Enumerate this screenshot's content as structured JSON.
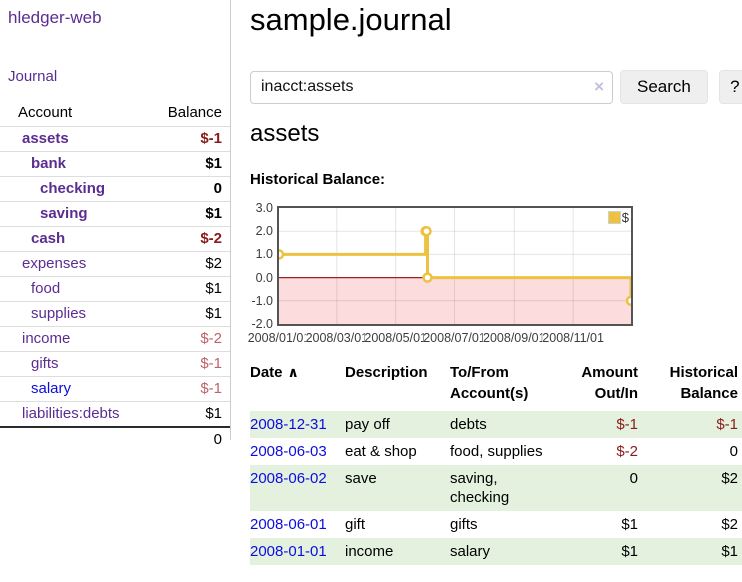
{
  "colors": {
    "link_purple": "#5b2d91",
    "link_blue": "#0d0de0",
    "negative": "#8b1a1a",
    "negative_dim": "#c0626a",
    "row_highlight": "#e3f1de",
    "chart_line": "#EDC240",
    "chart_negative_bg": "#fcdcdc",
    "chart_zero_line": "#9e2121",
    "chart_grid": "#e2e2e2",
    "chart_border": "#545454"
  },
  "sidebar": {
    "brand": "hledger-web",
    "nav": {
      "journal": "Journal"
    },
    "accounts": {
      "headers": {
        "account": "Account",
        "balance": "Balance"
      },
      "rows": [
        {
          "name": "assets",
          "balance": "$-1",
          "indent": 0,
          "bold": true,
          "negative": "strong",
          "link": "purple"
        },
        {
          "name": "bank",
          "balance": "$1",
          "indent": 1,
          "bold": true,
          "negative": null,
          "link": "purple"
        },
        {
          "name": "checking",
          "balance": "0",
          "indent": 2,
          "bold": true,
          "negative": null,
          "link": "purple"
        },
        {
          "name": "saving",
          "balance": "$1",
          "indent": 2,
          "bold": true,
          "negative": null,
          "link": "purple"
        },
        {
          "name": "cash",
          "balance": "$-2",
          "indent": 1,
          "bold": true,
          "negative": "strong",
          "link": "purple"
        },
        {
          "name": "expenses",
          "balance": "$2",
          "indent": 0,
          "bold": false,
          "negative": null,
          "link": "purple"
        },
        {
          "name": "food",
          "balance": "$1",
          "indent": 1,
          "bold": false,
          "negative": null,
          "link": "purple"
        },
        {
          "name": "supplies",
          "balance": "$1",
          "indent": 1,
          "bold": false,
          "negative": null,
          "link": "purple"
        },
        {
          "name": "income",
          "balance": "$-2",
          "indent": 0,
          "bold": false,
          "negative": "soft",
          "link": "purple"
        },
        {
          "name": "gifts",
          "balance": "$-1",
          "indent": 1,
          "bold": false,
          "negative": "soft",
          "link": "purple"
        },
        {
          "name": "salary",
          "balance": "$-1",
          "indent": 1,
          "bold": false,
          "negative": "soft",
          "link": "blue"
        },
        {
          "name": "liabilities:debts",
          "balance": "$1",
          "indent": 0,
          "bold": false,
          "negative": null,
          "link": "purple"
        }
      ],
      "total": "0"
    }
  },
  "main": {
    "title": "sample.journal",
    "search": {
      "value": "inacct:assets",
      "clear_glyph": "×",
      "search_button": "Search",
      "help_button": "?"
    },
    "account_heading": "assets"
  },
  "chart_data": {
    "type": "line",
    "style": "step",
    "title": "Historical Balance:",
    "series": [
      {
        "name": "$",
        "color": "#EDC240",
        "points": [
          {
            "date": "2008-01-01",
            "value": 1
          },
          {
            "date": "2008-06-01",
            "value": 2
          },
          {
            "date": "2008-06-02",
            "value": 2
          },
          {
            "date": "2008-06-03",
            "value": 0
          },
          {
            "date": "2008-12-31",
            "value": -1
          }
        ]
      }
    ],
    "xrange": [
      "2008-01-01",
      "2008-12-31"
    ],
    "ylim": [
      -2,
      3
    ],
    "yticks": [
      "3.0",
      "2.0",
      "1.0",
      "0.0",
      "-1.0",
      "-2.0"
    ],
    "xticks": [
      {
        "date": "2008-01-01",
        "label": "2008/01/01"
      },
      {
        "date": "2008-03-01",
        "label": "2008/03/01"
      },
      {
        "date": "2008-05-01",
        "label": "2008/05/01"
      },
      {
        "date": "2008-07-01",
        "label": "2008/07/01"
      },
      {
        "date": "2008-09-01",
        "label": "2008/09/01"
      },
      {
        "date": "2008-11-01",
        "label": "2008/11/01"
      }
    ],
    "legend": {
      "position": "top-right",
      "label": "$"
    },
    "negative_region": true,
    "grid": true
  },
  "register": {
    "headers": {
      "date": {
        "label": "Date",
        "sort_indicator": "∧"
      },
      "description": {
        "label": "Description"
      },
      "accounts": {
        "line1": "To/From",
        "line2": "Account(s)"
      },
      "amount": {
        "line1": "Amount",
        "line2": "Out/In"
      },
      "balance": {
        "line1": "Historical",
        "line2": "Balance"
      }
    },
    "rows": [
      {
        "date": "2008-12-31",
        "description": "pay off",
        "accounts": "debts",
        "amount": "$-1",
        "amount_negative": true,
        "balance": "$-1",
        "balance_negative": true,
        "highlighted": true
      },
      {
        "date": "2008-06-03",
        "description": "eat & shop",
        "accounts": "food, supplies",
        "amount": "$-2",
        "amount_negative": true,
        "balance": "0",
        "balance_negative": false,
        "highlighted": false
      },
      {
        "date": "2008-06-02",
        "description": "save",
        "accounts": "saving, checking",
        "amount": "0",
        "amount_negative": false,
        "balance": "$2",
        "balance_negative": false,
        "highlighted": true
      },
      {
        "date": "2008-06-01",
        "description": "gift",
        "accounts": "gifts",
        "amount": "$1",
        "amount_negative": false,
        "balance": "$2",
        "balance_negative": false,
        "highlighted": false
      },
      {
        "date": "2008-01-01",
        "description": "income",
        "accounts": "salary",
        "amount": "$1",
        "amount_negative": false,
        "balance": "$1",
        "balance_negative": false,
        "highlighted": true
      }
    ]
  }
}
